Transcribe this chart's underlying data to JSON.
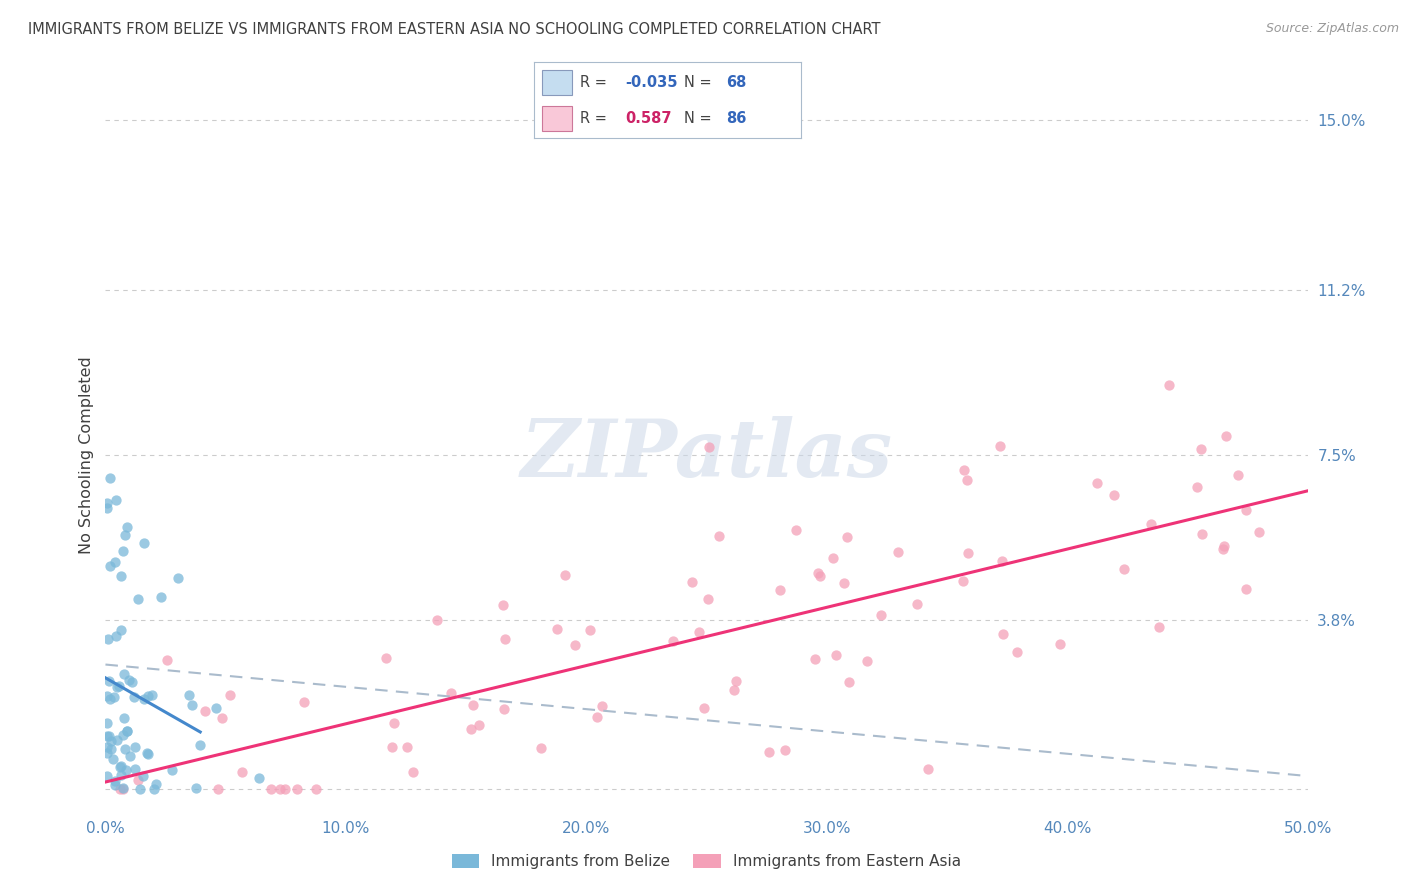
{
  "title": "IMMIGRANTS FROM BELIZE VS IMMIGRANTS FROM EASTERN ASIA NO SCHOOLING COMPLETED CORRELATION CHART",
  "source": "Source: ZipAtlas.com",
  "ylabel": "No Schooling Completed",
  "series1_label": "Immigrants from Belize",
  "series2_label": "Immigrants from Eastern Asia",
  "series1_color": "#7ab8d9",
  "series2_color": "#f4a0b8",
  "series1_R": -0.035,
  "series1_N": 68,
  "series2_R": 0.587,
  "series2_N": 86,
  "xlim": [
    0.0,
    0.5
  ],
  "ylim": [
    -0.005,
    0.155
  ],
  "right_ytick_vals": [
    0.0,
    0.038,
    0.075,
    0.112,
    0.15
  ],
  "right_yticklabels": [
    "",
    "3.8%",
    "7.5%",
    "11.2%",
    "15.0%"
  ],
  "xtick_labels": [
    "0.0%",
    "10.0%",
    "20.0%",
    "30.0%",
    "40.0%",
    "50.0%"
  ],
  "xtick_values": [
    0.0,
    0.1,
    0.2,
    0.3,
    0.4,
    0.5
  ],
  "background_color": "#ffffff",
  "grid_color": "#cccccc",
  "title_color": "#404040",
  "axis_label_color": "#404040",
  "tick_color": "#5588bb",
  "watermark": "ZIPatlas",
  "legend_box_color1": "#c5ddf0",
  "legend_box_color2": "#f9c8d8",
  "legend_R_color1": "#3366bb",
  "legend_R_color2": "#cc2266",
  "legend_N_color": "#3366bb",
  "regression1_color": "#4488cc",
  "regression2_color": "#ee3377",
  "regression_dash_color": "#aabbcc",
  "seed": 12
}
